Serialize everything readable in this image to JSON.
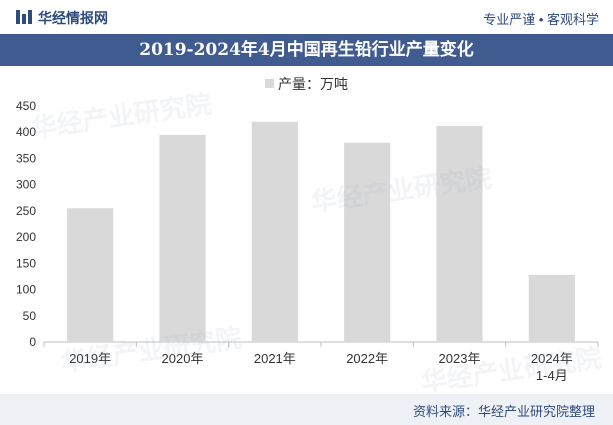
{
  "header": {
    "brand": "华经情报网",
    "slogan": "专业严谨 • 客观科学"
  },
  "chart_data": {
    "type": "bar",
    "title": "2019-2024年4月中国再生铅行业产量变化",
    "categories": [
      "2019年",
      "2020年",
      "2021年",
      "2022年",
      "2023年",
      "2024年 1-4月"
    ],
    "series": [
      {
        "name": "产量：万吨",
        "values": [
          255,
          395,
          420,
          380,
          412,
          128
        ]
      }
    ],
    "ylim": [
      0,
      450
    ],
    "yticks": [
      0,
      50,
      100,
      150,
      200,
      250,
      300,
      350,
      400,
      450
    ],
    "grid": false,
    "legend": "top-center",
    "bar_color": "#d9d9d9"
  },
  "footer": {
    "source": "资料来源：华经产业研究院整理"
  },
  "colors": {
    "header_text": "#2f4b7c",
    "title_bar": "#3f5b8f",
    "bar": "#d9d9d9"
  }
}
